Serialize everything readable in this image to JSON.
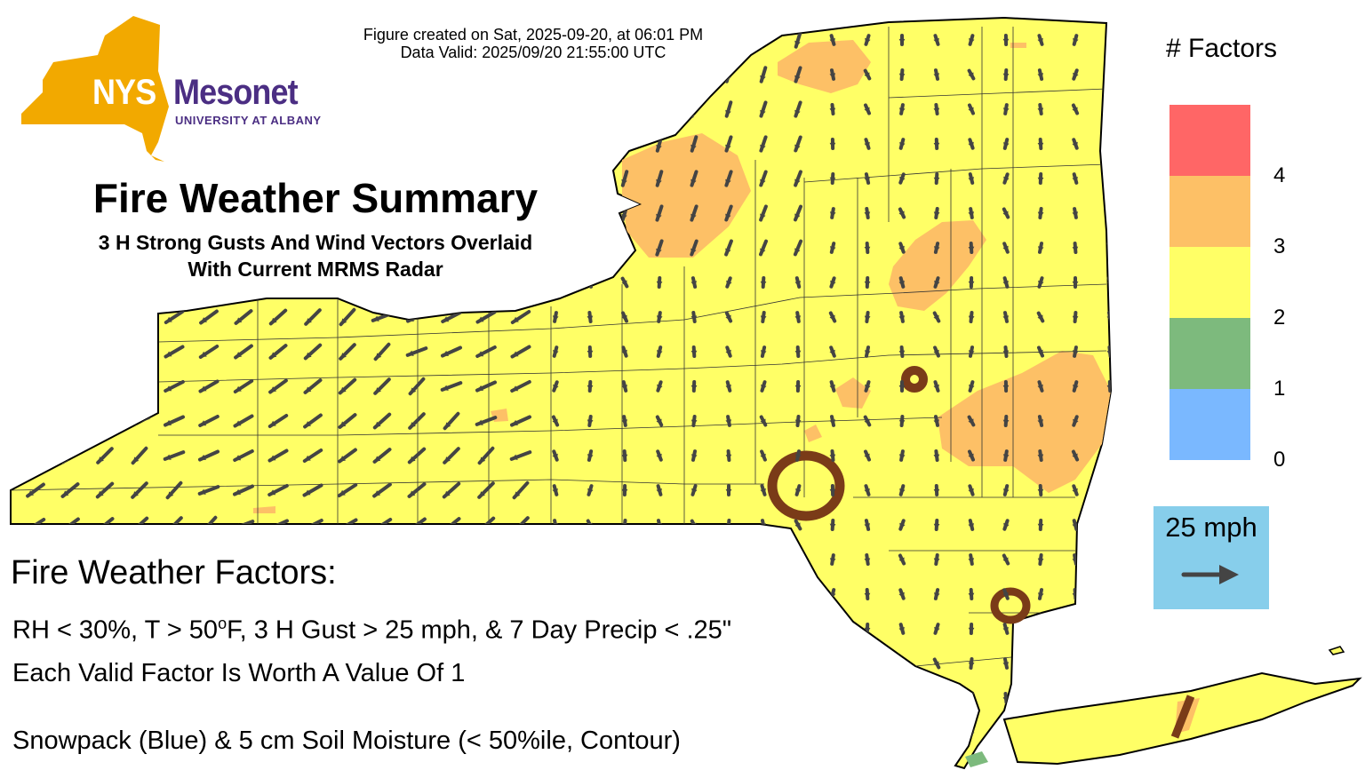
{
  "header": {
    "created": "Figure created on Sat, 2025-09-20, at 06:01 PM",
    "valid": "Data Valid: 2025/09/20 21:55:00 UTC"
  },
  "logo": {
    "nys": "NYS",
    "mesonet": "Mesonet",
    "university": "UNIVERSITY AT ALBANY"
  },
  "title": "Fire Weather Summary",
  "subtitle_lines": [
    "3 H Strong Gusts And Wind Vectors Overlaid",
    "With Current MRMS Radar"
  ],
  "factors": {
    "heading": "Fire Weather Factors:",
    "criteria_prefix": "RH < 30%, T > 50",
    "criteria_degree": "o",
    "criteria_suffix": "F, 3 H Gust > 25 mph, & 7 Day Precip < .25\"",
    "worth": "Each Valid Factor Is Worth A Value Of 1",
    "note": "Snowpack (Blue) & 5 cm Soil Moisture (< 50%ile, Contour)"
  },
  "legend": {
    "title": "# Factors",
    "items": [
      {
        "value": "4",
        "color": "#ff6666"
      },
      {
        "value": "3",
        "color": "#fdc066"
      },
      {
        "value": "2",
        "color": "#ffff66"
      },
      {
        "value": "1",
        "color": "#7dba7d"
      },
      {
        "value": "0",
        "color": "#7ab8ff"
      }
    ]
  },
  "scale": {
    "label": "25 mph",
    "icon": "right-arrow-icon"
  },
  "colors": {
    "state_fill": "#ffff66",
    "high_factor": "#fdc066",
    "soil_moisture_contour": "#7a3b18",
    "snowpack": "#7ab8ff",
    "scale_bg": "#87ceeb",
    "logo_gold": "#f2a900",
    "logo_purple": "#4b2e83"
  }
}
